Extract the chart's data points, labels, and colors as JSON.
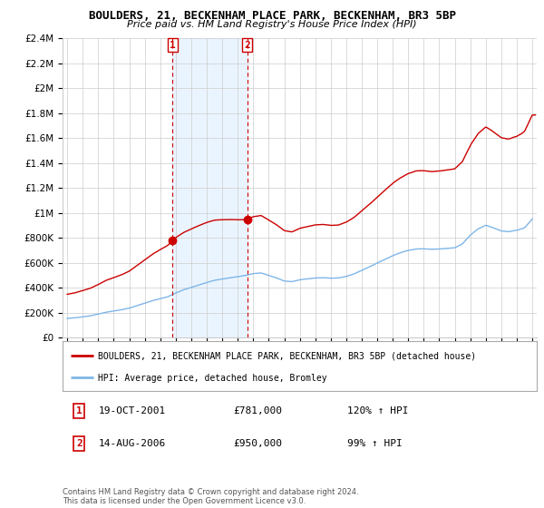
{
  "title": "BOULDERS, 21, BECKENHAM PLACE PARK, BECKENHAM, BR3 5BP",
  "subtitle": "Price paid vs. HM Land Registry's House Price Index (HPI)",
  "ylim": [
    0,
    2400000
  ],
  "yticks": [
    0,
    200000,
    400000,
    600000,
    800000,
    1000000,
    1200000,
    1400000,
    1600000,
    1800000,
    2000000,
    2200000,
    2400000
  ],
  "ytick_labels": [
    "£0",
    "£200K",
    "£400K",
    "£600K",
    "£800K",
    "£1M",
    "£1.2M",
    "£1.4M",
    "£1.6M",
    "£1.8M",
    "£2M",
    "£2.2M",
    "£2.4M"
  ],
  "hpi_color": "#7eb6e8",
  "price_color": "#cc0000",
  "shade_color": "#ddeeff",
  "background_color": "#ffffff",
  "grid_color": "#cccccc",
  "legend_label_price": "BOULDERS, 21, BECKENHAM PLACE PARK, BECKENHAM, BR3 5BP (detached house)",
  "legend_label_hpi": "HPI: Average price, detached house, Bromley",
  "transaction1_label": "1",
  "transaction1_date": "19-OCT-2001",
  "transaction1_price": "£781,000",
  "transaction1_hpi": "120% ↑ HPI",
  "transaction2_label": "2",
  "transaction2_date": "14-AUG-2006",
  "transaction2_price": "£950,000",
  "transaction2_hpi": "99% ↑ HPI",
  "footer": "Contains HM Land Registry data © Crown copyright and database right 2024.\nThis data is licensed under the Open Government Licence v3.0.",
  "x_start_year": 1995,
  "x_end_year": 2025,
  "sale1_year": 2001.8,
  "sale1_price": 781000,
  "sale2_year": 2006.62,
  "sale2_price": 950000
}
